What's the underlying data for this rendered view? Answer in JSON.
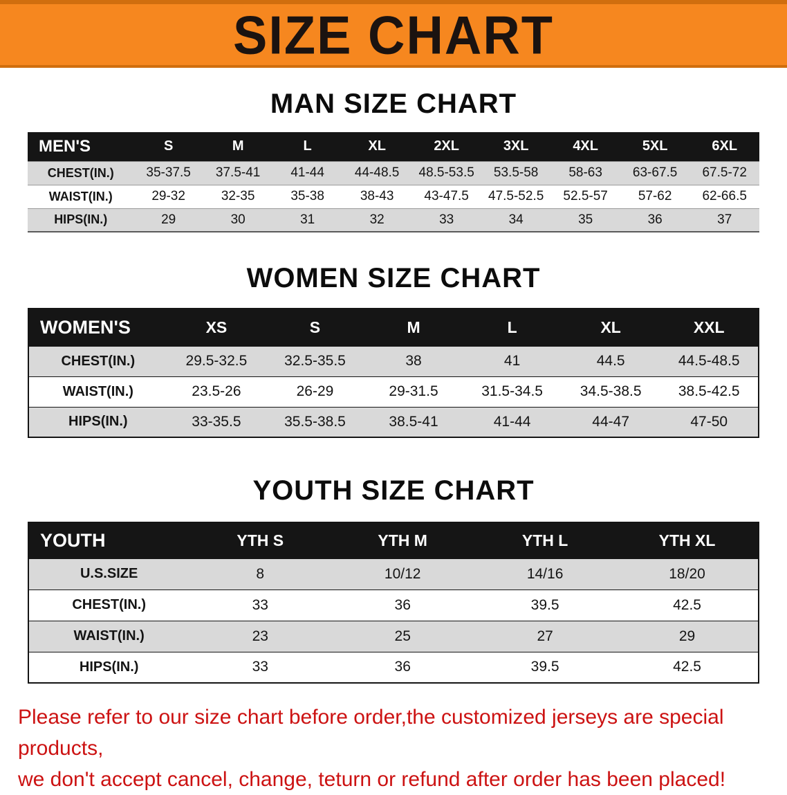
{
  "banner": {
    "title": "SIZE CHART"
  },
  "colors": {
    "banner_bg": "#f6871f",
    "banner_edge": "#d06e0e",
    "banner_text": "#1b1310",
    "table_header_bg": "#151515",
    "table_header_text": "#ffffff",
    "row_alt_bg": "#d9d9d9",
    "footer_text": "#cc1212"
  },
  "sections": [
    {
      "id": "men",
      "heading": "MAN SIZE CHART",
      "header": [
        "MEN'S",
        "S",
        "M",
        "L",
        "XL",
        "2XL",
        "3XL",
        "4XL",
        "5XL",
        "6XL"
      ],
      "rows": [
        [
          "CHEST(IN.)",
          "35-37.5",
          "37.5-41",
          "41-44",
          "44-48.5",
          "48.5-53.5",
          "53.5-58",
          "58-63",
          "63-67.5",
          "67.5-72"
        ],
        [
          "WAIST(IN.)",
          "29-32",
          "32-35",
          "35-38",
          "38-43",
          "43-47.5",
          "47.5-52.5",
          "52.5-57",
          "57-62",
          "62-66.5"
        ],
        [
          "HIPS(IN.)",
          "29",
          "30",
          "31",
          "32",
          "33",
          "34",
          "35",
          "36",
          "37"
        ]
      ]
    },
    {
      "id": "women",
      "heading": "WOMEN SIZE CHART",
      "header": [
        "WOMEN'S",
        "XS",
        "S",
        "M",
        "L",
        "XL",
        "XXL"
      ],
      "rows": [
        [
          "CHEST(IN.)",
          "29.5-32.5",
          "32.5-35.5",
          "38",
          "41",
          "44.5",
          "44.5-48.5"
        ],
        [
          "WAIST(IN.)",
          "23.5-26",
          "26-29",
          "29-31.5",
          "31.5-34.5",
          "34.5-38.5",
          "38.5-42.5"
        ],
        [
          "HIPS(IN.)",
          "33-35.5",
          "35.5-38.5",
          "38.5-41",
          "41-44",
          "44-47",
          "47-50"
        ]
      ]
    },
    {
      "id": "youth",
      "heading": "YOUTH SIZE CHART",
      "header": [
        "YOUTH",
        "YTH S",
        "YTH M",
        "YTH L",
        "YTH XL"
      ],
      "rows": [
        [
          "U.S.SIZE",
          "8",
          "10/12",
          "14/16",
          "18/20"
        ],
        [
          "CHEST(IN.)",
          "33",
          "36",
          "39.5",
          "42.5"
        ],
        [
          "WAIST(IN.)",
          "23",
          "25",
          "27",
          "29"
        ],
        [
          "HIPS(IN.)",
          "33",
          "36",
          "39.5",
          "42.5"
        ]
      ]
    }
  ],
  "footer": {
    "line1": "Please refer to our size chart before order,the customized jerseys are special products,",
    "line2": "we don't accept cancel, change, teturn or refund after order has been placed!"
  }
}
